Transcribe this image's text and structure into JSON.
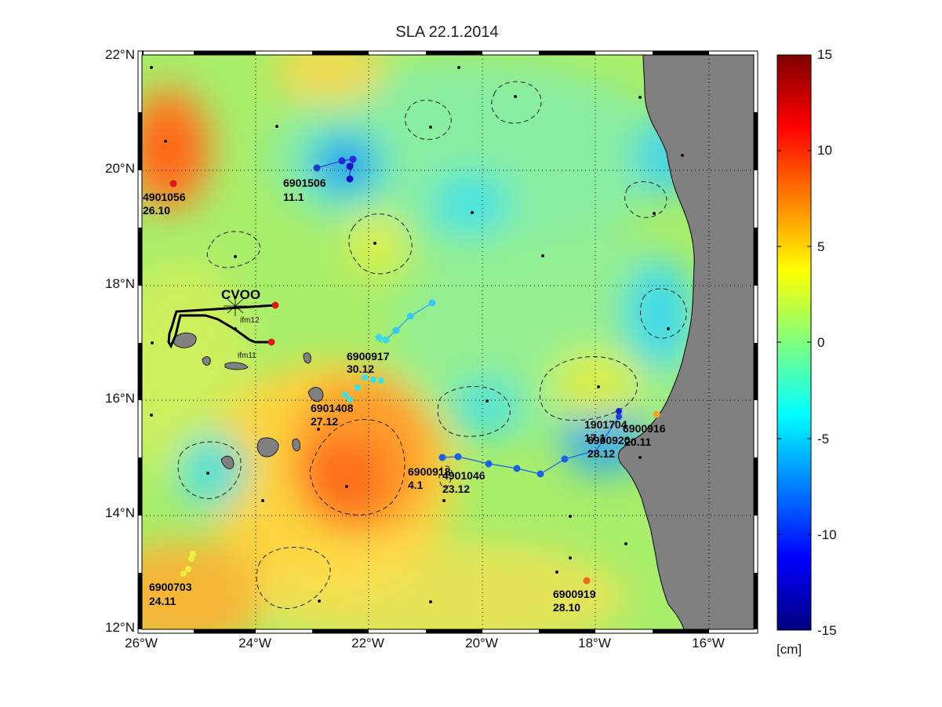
{
  "title": "SLA 22.1.2014",
  "lat_labels": [
    "22°N",
    "20°N",
    "18°N",
    "16°N",
    "14°N",
    "12°N"
  ],
  "lon_labels": [
    "26°W",
    "24°W",
    "22°W",
    "20°W",
    "18°W",
    "16°W"
  ],
  "colorbar": {
    "ticks": [
      "15",
      "10",
      "5",
      "0",
      "-5",
      "-10",
      "-15"
    ],
    "unit": "[cm]"
  },
  "station": {
    "name": "CVOO",
    "moorings": [
      "ifm12",
      "ifm11"
    ]
  },
  "floats": [
    {
      "id": "4901056",
      "date": "26.10"
    },
    {
      "id": "6901506",
      "date": "11.1"
    },
    {
      "id": "6900917",
      "date": "30.12"
    },
    {
      "id": "6901408",
      "date": "27.12"
    },
    {
      "id": "6900918",
      "date": "4.1"
    },
    {
      "id": "4901046",
      "date": "23.12"
    },
    {
      "id": "1901704",
      "date": "17.1"
    },
    {
      "id": "6900916",
      "date": "20.11"
    },
    {
      "id": "6900920",
      "date": "28.12"
    },
    {
      "id": "6900703",
      "date": "24.11"
    },
    {
      "id": "6900919",
      "date": "28.10"
    }
  ],
  "colors": {
    "land": "#808080",
    "ocean_base": "#9af275"
  }
}
